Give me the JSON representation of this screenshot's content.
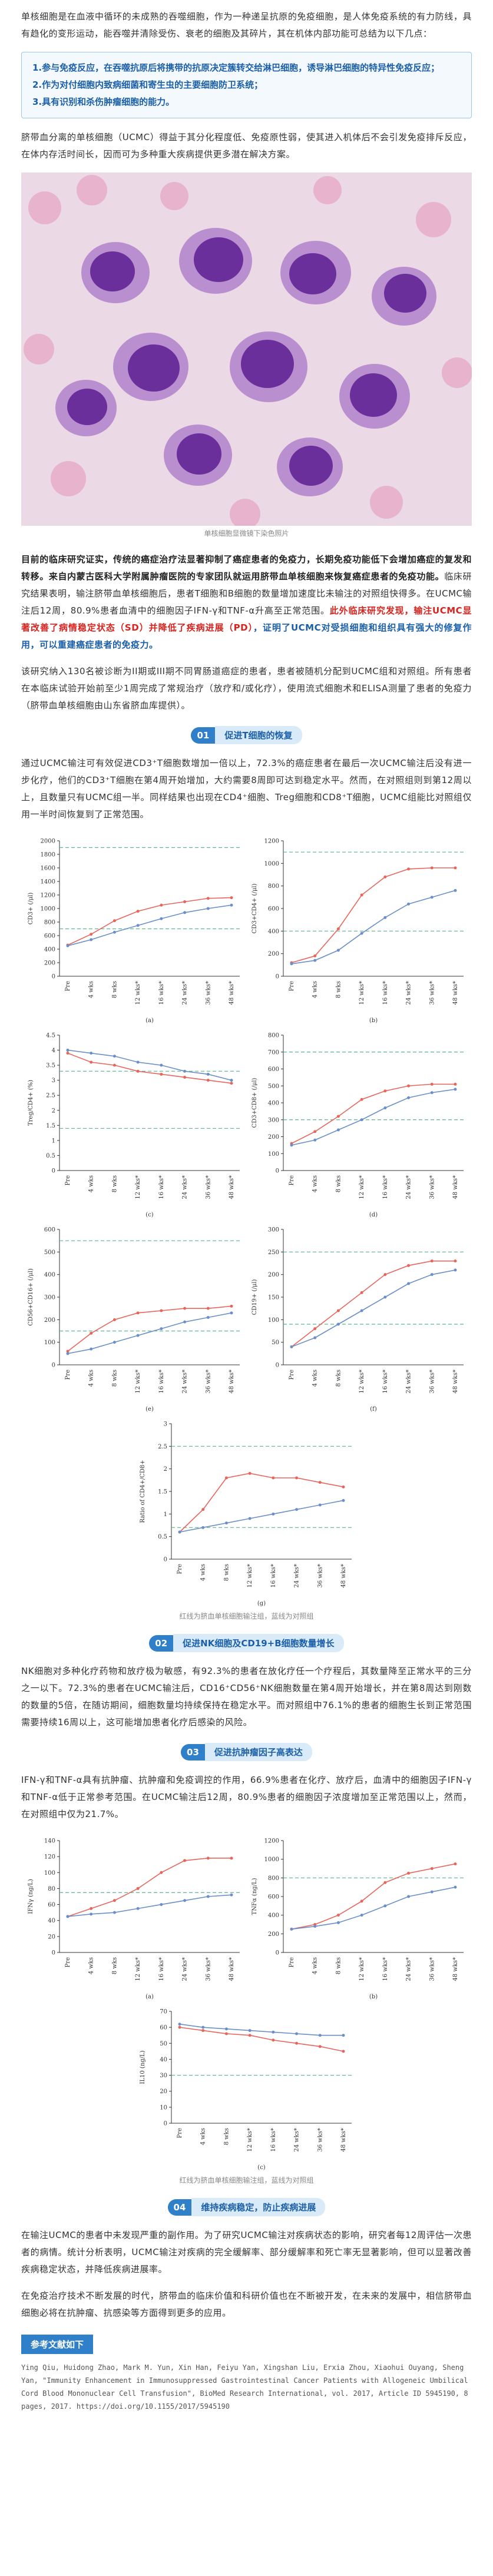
{
  "intro": "单核细胞是在血液中循环的未成熟的吞噬细胞，作为一种递呈抗原的免疫细胞，是人体免疫系统的有力防线，具有趋化的变形运动，能吞噬并清除受伤、衰老的细胞及其碎片，其在机体内部功能可总结为以下几点：",
  "functions": [
    "1.参与免疫反应，在吞噬抗原后将携带的抗原决定簇转交给淋巴细胞，诱导淋巴细胞的特异性免疫反应；",
    "2.作为对付细胞内致病细菌和寄生虫的主要细胞防卫系统；",
    "3.具有识别和杀伤肿瘤细胞的能力。"
  ],
  "ucmc_intro": "脐带血分离的单核细胞（UCMC）得益于其分化程度低、免疫原性弱，使其进入机体后不会引发免疫排斥反应，在体内存活时间长，因而可为多种重大疾病提供更多潜在解决方案。",
  "image_caption": "单核细胞显微镜下染色照片",
  "study_summary": {
    "bold": "目前的临床研究证实，传统的癌症治疗法显著抑制了癌症患者的免疫力，长期免疫功能低下会增加癌症的复发和转移。来自内蒙古医科大学附属肿瘤医院的专家团队就运用脐带血单核细胞来恢复癌症患者的免疫功能。",
    "plain": "临床研究结果表明，输注脐带血单核细胞后，患者T细胞和B细胞的数量增加速度比未输注的对照组快得多。在UCMC输注后12周，80.9%患者血清中的细胞因子IFN-γ和TNF-α升高至正常范围。",
    "red": "此外临床研究发现，输注UCMC显著改善了病情稳定状态（SD）并降低了疾病进展（PD）",
    "blue": "，证明了UCMC对受损细胞和组织具有强大的修复作用，可以重建癌症患者的免疫力。"
  },
  "study_design": "该研究纳入130名被诊断为II期或III期不同胃肠道癌症的患者，患者被随机分配到UCMC组和对照组。所有患者在本临床试验开始前至少1周完成了常规治疗（放疗和/或化疗），使用流式细胞术和ELISA测量了患者的免疫力（脐带血单核细胞由山东省脐血库提供）。",
  "sections": [
    {
      "number": "01",
      "title": "促进T细胞的恢复",
      "text": "通过UCMC输注可有效促进CD3⁺T细胞数增加一倍以上，72.3%的癌症患者在最后一次UCMC输注后没有进一步化疗，他们的CD3⁺T细胞在第4周开始增加，大约需要8周即可达到稳定水平。然而，在对照组则到第12周以上，且数量只有UCMC组一半。同样结果也出现在CD4⁺细胞、Treg细胞和CD8⁺T细胞，UCMC组能比对照组仅用一半时间恢复到了正常范围。"
    },
    {
      "number": "02",
      "title": "促进NK细胞及CD19+B细胞数量增长",
      "text": "NK细胞对多种化疗药物和放疗极为敏感，有92.3%的患者在放化疗任一个疗程后，其数量降至正常水平的三分之一以下。72.3%的患者在UCMC输注后，CD16⁺CD56⁺NK细胞数量在第4周开始增长，并在第8周达到刚数的数量的5倍，在随访期间，细胞数量均持续保持在稳定水平。而对照组中76.1%的患者的细胞生长到正常范围需要持续16周以上，这可能增加患者化疗后感染的风险。"
    },
    {
      "number": "03",
      "title": "促进抗肿瘤因子高表达",
      "text": "IFN-γ和TNF-α具有抗肿瘤、抗肿瘤和免疫调控的作用，66.9%患者在化疗、放疗后，血清中的细胞因子IFN-γ和TNF-α低于正常参考范围。在UCMC输注后12周，80.9%患者的细胞因子浓度增加至正常范围以上，然而，在对照组中仅为21.7%。"
    },
    {
      "number": "04",
      "title": "维持疾病稳定，防止疾病进展",
      "text": "在输注UCMC的患者中未发现严重的副作用。为了研究UCMC输注对疾病状态的影响，研究者每12周评估一次患者的病情。统计分析表明，UCMC输注对疾病的完全缓解率、部分缓解率和死亡率无显著影响，但可以显著改善疾病稳定状态，并降低疾病进展率。"
    }
  ],
  "figure_caption": "红线为脐血单核细胞输注组，蓝线为对照组",
  "outlook": "在免疫治疗技术不断发展的时代，脐带血的临床价值和科研价值也在不断被开发，在未来的发展中，相信脐带血细胞必将在抗肿瘤、抗感染等方面得到更多的应用。",
  "references_title": "参考文献如下",
  "reference": "Ying Qiu, Huidong Zhao, Mark M. Yun, Xin Han, Feiyu Yan, Xingshan Liu, Erxia Zhou, Xiaohui Ouyang, Sheng Yan, \"Immunity Enhancement in Immunosuppressed Gastrointestinal Cancer Patients with Allogeneic Umbilical Cord Blood Mononuclear Cell Transfusion\", BioMed Research International, vol. 2017, Article ID 5945190, 8 pages, 2017. https://doi.org/10.1155/2017/5945190",
  "chart_data": [
    {
      "type": "line",
      "panel_label": "(a)",
      "y_label": "CD3+ (/μl)",
      "categories": [
        "Pre",
        "4 wks",
        "8 wks",
        "12 wks*",
        "16 wks*",
        "24 wks*",
        "36 wks*",
        "48 wks*"
      ],
      "ylim": [
        0,
        2000
      ],
      "yticks": [
        0,
        200,
        400,
        600,
        800,
        1000,
        1200,
        1400,
        1600,
        1800,
        2000
      ],
      "reference_lines": [
        700,
        1900
      ],
      "series": [
        {
          "color": "#e8655c",
          "values": [
            460,
            620,
            820,
            960,
            1050,
            1100,
            1150,
            1160
          ]
        },
        {
          "color": "#6b8fc9",
          "values": [
            450,
            540,
            650,
            750,
            850,
            940,
            1000,
            1050
          ]
        }
      ]
    },
    {
      "type": "line",
      "panel_label": "(b)",
      "y_label": "CD3+CD4+ (/μl)",
      "categories": [
        "Pre",
        "4 wks",
        "8 wks",
        "12 wks*",
        "16 wks*",
        "24 wks*",
        "36 wks*",
        "48 wks*"
      ],
      "ylim": [
        0,
        1200
      ],
      "yticks": [
        0,
        200,
        400,
        600,
        800,
        1000,
        1200
      ],
      "reference_lines": [
        400,
        1100
      ],
      "series": [
        {
          "color": "#e8655c",
          "values": [
            120,
            180,
            420,
            720,
            880,
            950,
            960,
            960
          ]
        },
        {
          "color": "#6b8fc9",
          "values": [
            110,
            140,
            230,
            380,
            520,
            640,
            700,
            760
          ]
        }
      ]
    },
    {
      "type": "line",
      "panel_label": "(c)",
      "y_label": "Treg/CD4+ (%)",
      "categories": [
        "Pre",
        "4 wks",
        "8 wks",
        "12 wks*",
        "16 wks*",
        "24 wks*",
        "36 wks*",
        "48 wks*"
      ],
      "ylim": [
        0,
        4.5
      ],
      "yticks": [
        0,
        0.5,
        1,
        1.5,
        2,
        2.5,
        3,
        3.5,
        4,
        4.5
      ],
      "reference_lines": [
        1.4,
        3.3
      ],
      "series": [
        {
          "color": "#e8655c",
          "values": [
            3.9,
            3.6,
            3.5,
            3.3,
            3.2,
            3.1,
            3.0,
            2.9
          ]
        },
        {
          "color": "#6b8fc9",
          "values": [
            4.0,
            3.9,
            3.8,
            3.6,
            3.5,
            3.3,
            3.2,
            3.0
          ]
        }
      ]
    },
    {
      "type": "line",
      "panel_label": "(d)",
      "y_label": "CD3+CD8+ (/μl)",
      "categories": [
        "Pre",
        "4 wks",
        "8 wks",
        "12 wks*",
        "16 wks*",
        "24 wks*",
        "36 wks*",
        "48 wks*"
      ],
      "ylim": [
        0,
        800
      ],
      "yticks": [
        0,
        100,
        200,
        300,
        400,
        500,
        600,
        700,
        800
      ],
      "reference_lines": [
        300,
        700
      ],
      "series": [
        {
          "color": "#e8655c",
          "values": [
            160,
            230,
            320,
            420,
            470,
            500,
            510,
            510
          ]
        },
        {
          "color": "#6b8fc9",
          "values": [
            150,
            180,
            240,
            300,
            370,
            430,
            460,
            480
          ]
        }
      ]
    },
    {
      "type": "line",
      "panel_label": "(e)",
      "y_label": "CD56+CD16+ (/μl)",
      "categories": [
        "Pre",
        "4 wks",
        "8 wks",
        "12 wks*",
        "16 wks*",
        "24 wks*",
        "36 wks*",
        "48 wks*"
      ],
      "ylim": [
        0,
        600
      ],
      "yticks": [
        0,
        100,
        200,
        300,
        400,
        500,
        600
      ],
      "reference_lines": [
        150,
        550
      ],
      "series": [
        {
          "color": "#e8655c",
          "values": [
            60,
            140,
            200,
            230,
            240,
            250,
            250,
            260
          ]
        },
        {
          "color": "#6b8fc9",
          "values": [
            50,
            70,
            100,
            130,
            160,
            190,
            210,
            230
          ]
        }
      ]
    },
    {
      "type": "line",
      "panel_label": "(f)",
      "y_label": "CD19+ (/μl)",
      "categories": [
        "Pre",
        "4 wks",
        "8 wks",
        "12 wks*",
        "16 wks*",
        "24 wks*",
        "36 wks*",
        "48 wks*"
      ],
      "ylim": [
        0,
        300
      ],
      "yticks": [
        0,
        50,
        100,
        150,
        200,
        250,
        300
      ],
      "reference_lines": [
        90,
        250
      ],
      "series": [
        {
          "color": "#e8655c",
          "values": [
            40,
            80,
            120,
            160,
            200,
            220,
            230,
            230
          ]
        },
        {
          "color": "#6b8fc9",
          "values": [
            40,
            60,
            90,
            120,
            150,
            180,
            200,
            210
          ]
        }
      ]
    },
    {
      "type": "line",
      "panel_label": "(g)",
      "y_label": "Ratio of CD4+/CD8+",
      "categories": [
        "Pre",
        "4 wks",
        "8 wks",
        "12 wks*",
        "16 wks*",
        "24 wks*",
        "36 wks*",
        "48 wks*"
      ],
      "ylim": [
        0,
        3
      ],
      "yticks": [
        0,
        0.5,
        1,
        1.5,
        2,
        2.5,
        3
      ],
      "reference_lines": [
        0.7,
        2.5
      ],
      "series": [
        {
          "color": "#e8655c",
          "values": [
            0.6,
            1.1,
            1.8,
            1.9,
            1.8,
            1.8,
            1.7,
            1.6
          ]
        },
        {
          "color": "#6b8fc9",
          "values": [
            0.6,
            0.7,
            0.8,
            0.9,
            1.0,
            1.1,
            1.2,
            1.3
          ]
        }
      ]
    },
    {
      "type": "line",
      "panel_label": "(a)",
      "y_label": "IFNγ (ng/L)",
      "categories": [
        "Pre",
        "4 wks",
        "8 wks",
        "12 wks*",
        "16 wks*",
        "24 wks*",
        "36 wks*",
        "48 wks*"
      ],
      "ylim": [
        0,
        140
      ],
      "yticks": [
        0,
        20,
        40,
        60,
        80,
        100,
        120,
        140
      ],
      "reference_lines": [
        75
      ],
      "series": [
        {
          "color": "#e8655c",
          "values": [
            45,
            55,
            65,
            80,
            100,
            115,
            118,
            118
          ]
        },
        {
          "color": "#6b8fc9",
          "values": [
            45,
            48,
            50,
            55,
            60,
            65,
            70,
            72
          ]
        }
      ]
    },
    {
      "type": "line",
      "panel_label": "(b)",
      "y_label": "TNFα (ng/L)",
      "categories": [
        "Pre",
        "4 wks",
        "8 wks",
        "12 wks*",
        "16 wks*",
        "24 wks*",
        "36 wks*",
        "48 wks*"
      ],
      "ylim": [
        0,
        1200
      ],
      "yticks": [
        0,
        200,
        400,
        600,
        800,
        1000,
        1200
      ],
      "reference_lines": [
        800
      ],
      "series": [
        {
          "color": "#e8655c",
          "values": [
            250,
            300,
            400,
            550,
            750,
            850,
            900,
            950
          ]
        },
        {
          "color": "#6b8fc9",
          "values": [
            250,
            280,
            320,
            400,
            500,
            600,
            650,
            700
          ]
        }
      ]
    },
    {
      "type": "line",
      "panel_label": "(c)",
      "y_label": "IL10 (ng/L)",
      "categories": [
        "Pre",
        "4 wks",
        "8 wks",
        "12 wks*",
        "16 wks*",
        "24 wks*",
        "36 wks*",
        "48 wks*"
      ],
      "ylim": [
        0,
        70
      ],
      "yticks": [
        0,
        10,
        20,
        30,
        40,
        50,
        60,
        70
      ],
      "reference_lines": [
        30
      ],
      "series": [
        {
          "color": "#e8655c",
          "values": [
            60,
            58,
            56,
            55,
            52,
            50,
            48,
            45
          ]
        },
        {
          "color": "#6b8fc9",
          "values": [
            62,
            60,
            59,
            58,
            57,
            56,
            55,
            55
          ]
        }
      ]
    }
  ]
}
